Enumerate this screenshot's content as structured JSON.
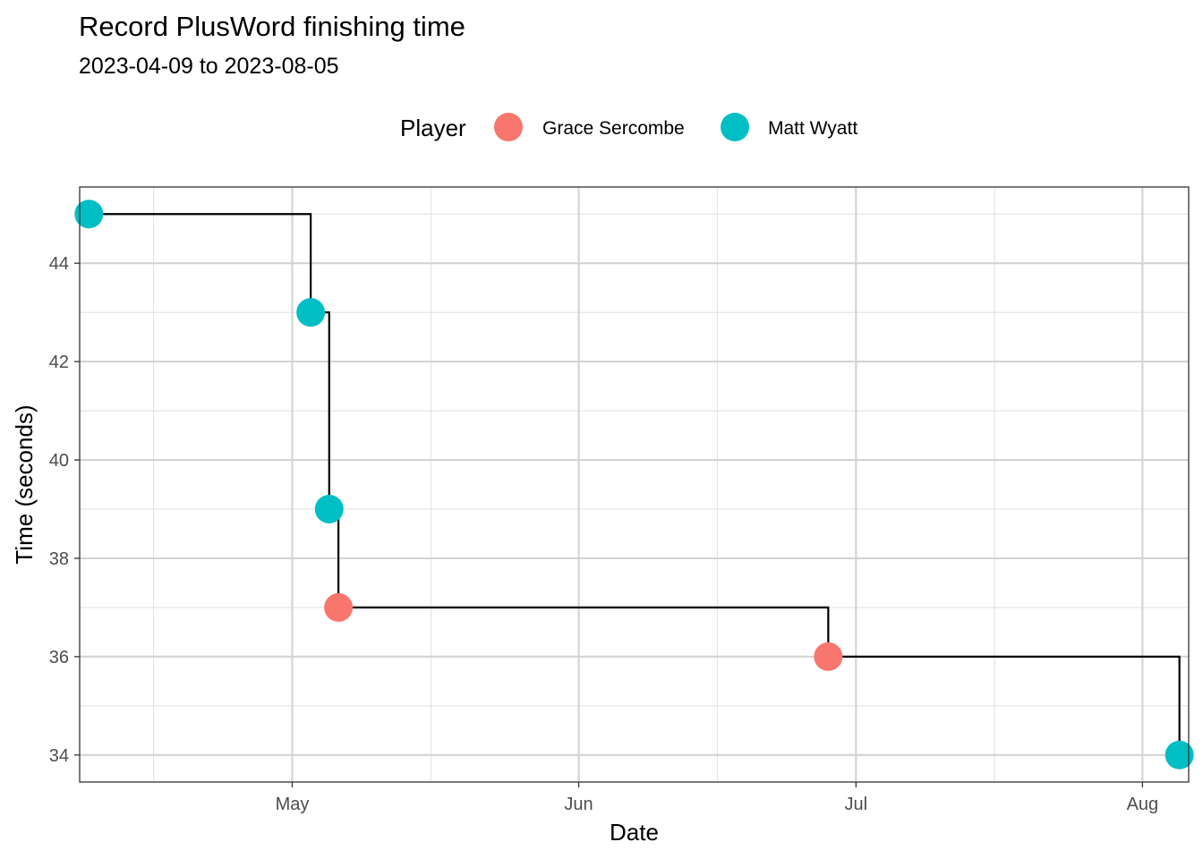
{
  "chart_data": {
    "type": "scatter",
    "title": "Record PlusWord finishing time",
    "subtitle": "2023-04-09 to 2023-08-05",
    "xlabel": "Date",
    "ylabel": "Time (seconds)",
    "x_type": "date",
    "xlim": [
      "2023-04-08",
      "2023-08-06"
    ],
    "ylim": [
      33.45,
      45.55
    ],
    "x_ticks": [
      {
        "value": "2023-05-01",
        "label": "May"
      },
      {
        "value": "2023-06-01",
        "label": "Jun"
      },
      {
        "value": "2023-07-01",
        "label": "Jul"
      },
      {
        "value": "2023-08-01",
        "label": "Aug"
      }
    ],
    "x_minor_ticks": [
      "2023-04-16",
      "2023-05-16",
      "2023-06-16",
      "2023-07-16"
    ],
    "y_ticks": [
      34,
      36,
      38,
      40,
      42,
      44
    ],
    "y_minor_ticks": [
      35,
      37,
      39,
      41,
      43,
      45
    ],
    "grid": true,
    "legend": {
      "title": "Player",
      "position": "top",
      "entries": [
        {
          "name": "Grace Sercombe",
          "color": "#F8766D"
        },
        {
          "name": "Matt Wyatt",
          "color": "#00BFC4"
        }
      ]
    },
    "step_line": {
      "direction": "hv",
      "color": "#000000"
    },
    "points": [
      {
        "date": "2023-04-09",
        "time": 45,
        "player": "Matt Wyatt"
      },
      {
        "date": "2023-05-03",
        "time": 43,
        "player": "Matt Wyatt"
      },
      {
        "date": "2023-05-05",
        "time": 39,
        "player": "Matt Wyatt"
      },
      {
        "date": "2023-05-06",
        "time": 37,
        "player": "Grace Sercombe"
      },
      {
        "date": "2023-06-28",
        "time": 36,
        "player": "Grace Sercombe"
      },
      {
        "date": "2023-08-05",
        "time": 34,
        "player": "Matt Wyatt"
      }
    ],
    "colors": {
      "panel_border": "#333333",
      "grid_major": "#D3D3D3",
      "grid_minor": "#E3E3E3",
      "axis_tick": "#333333"
    }
  }
}
